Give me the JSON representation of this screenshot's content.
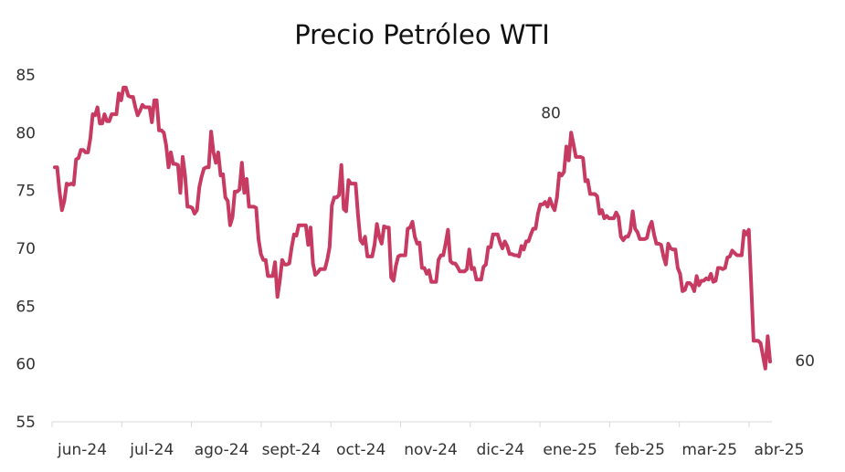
{
  "chart_data": {
    "type": "line",
    "title": "Precio Petróleo WTI",
    "xlabel": "",
    "ylabel": "",
    "ylim": [
      55,
      85
    ],
    "yticks": [
      85,
      80,
      75,
      70,
      65,
      60,
      55
    ],
    "xticks": [
      "jun-24",
      "jul-24",
      "ago-24",
      "sept-24",
      "oct-24",
      "nov-24",
      "dic-24",
      "ene-25",
      "feb-25",
      "mar-25",
      "abr-25"
    ],
    "grid": false,
    "legend": "none",
    "line_color": "#C73A62",
    "series": [
      {
        "values": [
          77.0,
          77.0,
          74.9,
          73.3,
          74.1,
          75.6,
          75.5,
          75.6,
          75.5,
          77.7,
          77.8,
          78.5,
          78.5,
          78.3,
          78.3,
          79.5,
          81.6,
          81.5,
          82.2,
          80.8,
          80.8,
          81.6,
          81.0,
          81.0,
          81.6,
          81.6,
          81.6,
          83.4,
          82.8,
          83.9,
          83.9,
          83.2,
          83.1,
          83.1,
          82.2,
          81.5,
          81.9,
          82.4,
          82.2,
          82.2,
          82.2,
          80.9,
          82.8,
          82.8,
          80.2,
          80.2,
          80.0,
          78.9,
          77.0,
          78.3,
          77.3,
          77.3,
          77.2,
          74.8,
          77.9,
          76.3,
          73.6,
          73.6,
          73.5,
          73.0,
          73.3,
          75.3,
          76.2,
          76.9,
          77.0,
          77.0,
          80.1,
          78.3,
          77.4,
          78.3,
          76.3,
          76.4,
          74.4,
          74.1,
          72.0,
          72.7,
          74.9,
          74.9,
          75.1,
          77.4,
          74.8,
          76.0,
          73.6,
          73.6,
          73.6,
          73.5,
          70.8,
          69.5,
          69.0,
          69.0,
          67.6,
          67.6,
          67.6,
          68.8,
          65.8,
          67.2,
          69.0,
          68.6,
          68.6,
          68.7,
          70.1,
          71.2,
          71.1,
          72.0,
          72.0,
          72.0,
          72.0,
          70.3,
          71.8,
          68.7,
          67.7,
          67.9,
          68.2,
          68.2,
          68.2,
          69.0,
          70.1,
          73.7,
          74.4,
          74.4,
          74.6,
          77.2,
          73.4,
          73.2,
          75.9,
          75.6,
          75.6,
          75.6,
          72.9,
          70.7,
          70.4,
          71.0,
          69.3,
          69.3,
          69.3,
          70.3,
          72.1,
          71.0,
          70.4,
          71.9,
          71.8,
          71.8,
          67.5,
          67.2,
          68.5,
          69.3,
          69.4,
          69.4,
          69.4,
          71.7,
          71.8,
          72.3,
          71.0,
          70.4,
          70.5,
          68.3,
          68.3,
          67.8,
          68.1,
          67.1,
          67.1,
          67.1,
          69.0,
          69.4,
          69.4,
          70.4,
          71.6,
          68.9,
          68.7,
          68.7,
          68.4,
          68.0,
          68.0,
          68.0,
          68.2,
          69.9,
          68.2,
          68.3,
          67.3,
          67.3,
          67.3,
          68.4,
          68.6,
          70.1,
          70.1,
          71.2,
          71.2,
          71.2,
          70.5,
          70.0,
          70.6,
          70.2,
          69.5,
          69.5,
          69.4,
          69.4,
          69.3,
          70.2,
          69.9,
          70.6,
          70.6,
          71.2,
          71.7,
          71.7,
          73.0,
          73.8,
          73.8,
          74.0,
          73.6,
          74.3,
          73.7,
          73.3,
          74.4,
          76.5,
          76.3,
          76.6,
          78.8,
          77.6,
          80.0,
          79.0,
          77.9,
          77.9,
          77.9,
          77.8,
          75.8,
          75.9,
          74.7,
          74.7,
          74.7,
          74.5,
          73.0,
          73.3,
          72.6,
          72.8,
          72.6,
          72.6,
          72.6,
          73.1,
          72.7,
          71.0,
          70.7,
          71.0,
          71.0,
          71.5,
          73.2,
          71.7,
          71.4,
          70.8,
          70.8,
          70.8,
          70.9,
          71.8,
          72.3,
          71.2,
          70.4,
          70.4,
          70.3,
          69.3,
          68.6,
          70.4,
          70.0,
          69.9,
          69.9,
          68.3,
          67.8,
          66.3,
          66.4,
          67.0,
          67.0,
          66.8,
          66.3,
          67.6,
          66.8,
          67.2,
          67.2,
          67.4,
          67.3,
          67.8,
          67.1,
          67.2,
          68.3,
          68.3,
          68.2,
          68.3,
          69.2,
          69.3,
          69.8,
          69.6,
          69.4,
          69.4,
          69.4,
          71.5,
          71.2,
          71.6,
          66.9,
          62.0,
          62.0,
          62.0,
          61.8,
          60.7,
          59.6,
          62.4,
          60.2
        ]
      }
    ],
    "annotations": [
      {
        "text": "80",
        "value": 80.0,
        "at_index": 216
      },
      {
        "text": "60",
        "value": 60.2,
        "at_index": 306
      }
    ]
  }
}
